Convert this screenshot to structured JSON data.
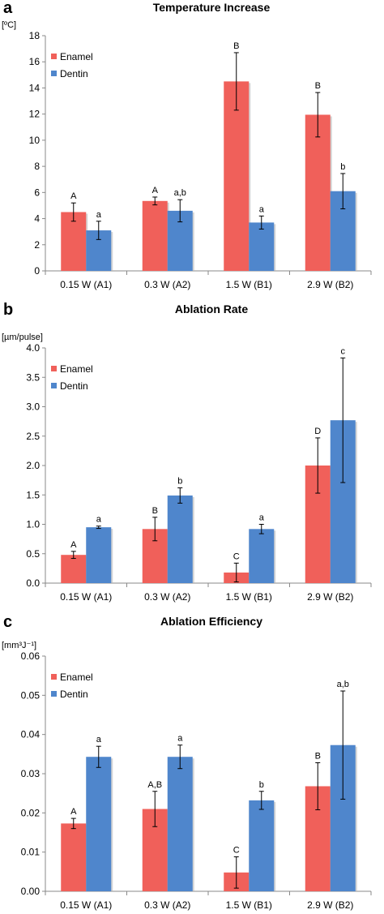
{
  "chart_data": [
    {
      "type": "bar",
      "panel": "a",
      "title": "Temperature Increase",
      "ylabel": "[ºC]",
      "ylim": [
        0,
        18
      ],
      "yticks": [
        "0",
        "2",
        "4",
        "6",
        "8",
        "10",
        "12",
        "14",
        "16",
        "18"
      ],
      "categories": [
        "0.15 W (A1)",
        "0.3 W (A2)",
        "1.5 W (B1)",
        "2.9 W (B2)"
      ],
      "legend_position": "top-left",
      "series": [
        {
          "name": "Enamel",
          "color": "#f0605a",
          "values": [
            4.5,
            5.35,
            14.5,
            11.95
          ],
          "errors": [
            0.7,
            0.3,
            2.2,
            1.7
          ],
          "labels": [
            "A",
            "A",
            "B",
            "B"
          ]
        },
        {
          "name": "Dentin",
          "color": "#4f86cc",
          "values": [
            3.1,
            4.6,
            3.7,
            6.1
          ],
          "errors": [
            0.7,
            0.85,
            0.5,
            1.35
          ],
          "labels": [
            "a",
            "a,b",
            "a",
            "b"
          ]
        }
      ]
    },
    {
      "type": "bar",
      "panel": "b",
      "title": "Ablation Rate",
      "ylabel": "[µm/pulse]",
      "ylim": [
        0,
        4
      ],
      "yticks": [
        "0.0",
        "0.5",
        "1.0",
        "1.5",
        "2.0",
        "2.5",
        "3.0",
        "3.5",
        "4.0"
      ],
      "categories": [
        "0.15 W (A1)",
        "0.3 W (A2)",
        "1.5 W (B1)",
        "2.9 W (B2)"
      ],
      "legend_position": "top-left",
      "series": [
        {
          "name": "Enamel",
          "color": "#f0605a",
          "values": [
            0.48,
            0.92,
            0.18,
            2.0
          ],
          "errors": [
            0.06,
            0.2,
            0.16,
            0.47
          ],
          "labels": [
            "A",
            "B",
            "C",
            "D"
          ]
        },
        {
          "name": "Dentin",
          "color": "#4f86cc",
          "values": [
            0.95,
            1.49,
            0.92,
            2.77
          ],
          "errors": [
            0.02,
            0.13,
            0.08,
            1.06
          ],
          "labels": [
            "a",
            "b",
            "a",
            "c"
          ]
        }
      ]
    },
    {
      "type": "bar",
      "panel": "c",
      "title": "Ablation Efficiency",
      "ylabel": "[mm³J⁻¹]",
      "ylim": [
        0,
        0.06
      ],
      "yticks": [
        "0.00",
        "0.01",
        "0.02",
        "0.03",
        "0.04",
        "0.05",
        "0.06"
      ],
      "categories": [
        "0.15 W (A1)",
        "0.3 W (A2)",
        "1.5 W (B1)",
        "2.9 W (B2)"
      ],
      "legend_position": "top-left",
      "series": [
        {
          "name": "Enamel",
          "color": "#f0605a",
          "values": [
            0.0173,
            0.021,
            0.0048,
            0.0268
          ],
          "errors": [
            0.0013,
            0.0045,
            0.004,
            0.006
          ],
          "labels": [
            "A",
            "A,B",
            "C",
            "B"
          ]
        },
        {
          "name": "Dentin",
          "color": "#4f86cc",
          "values": [
            0.0343,
            0.0343,
            0.0232,
            0.0373
          ],
          "errors": [
            0.0027,
            0.003,
            0.0023,
            0.0138
          ],
          "labels": [
            "a",
            "a",
            "b",
            "a,b"
          ]
        }
      ]
    }
  ]
}
